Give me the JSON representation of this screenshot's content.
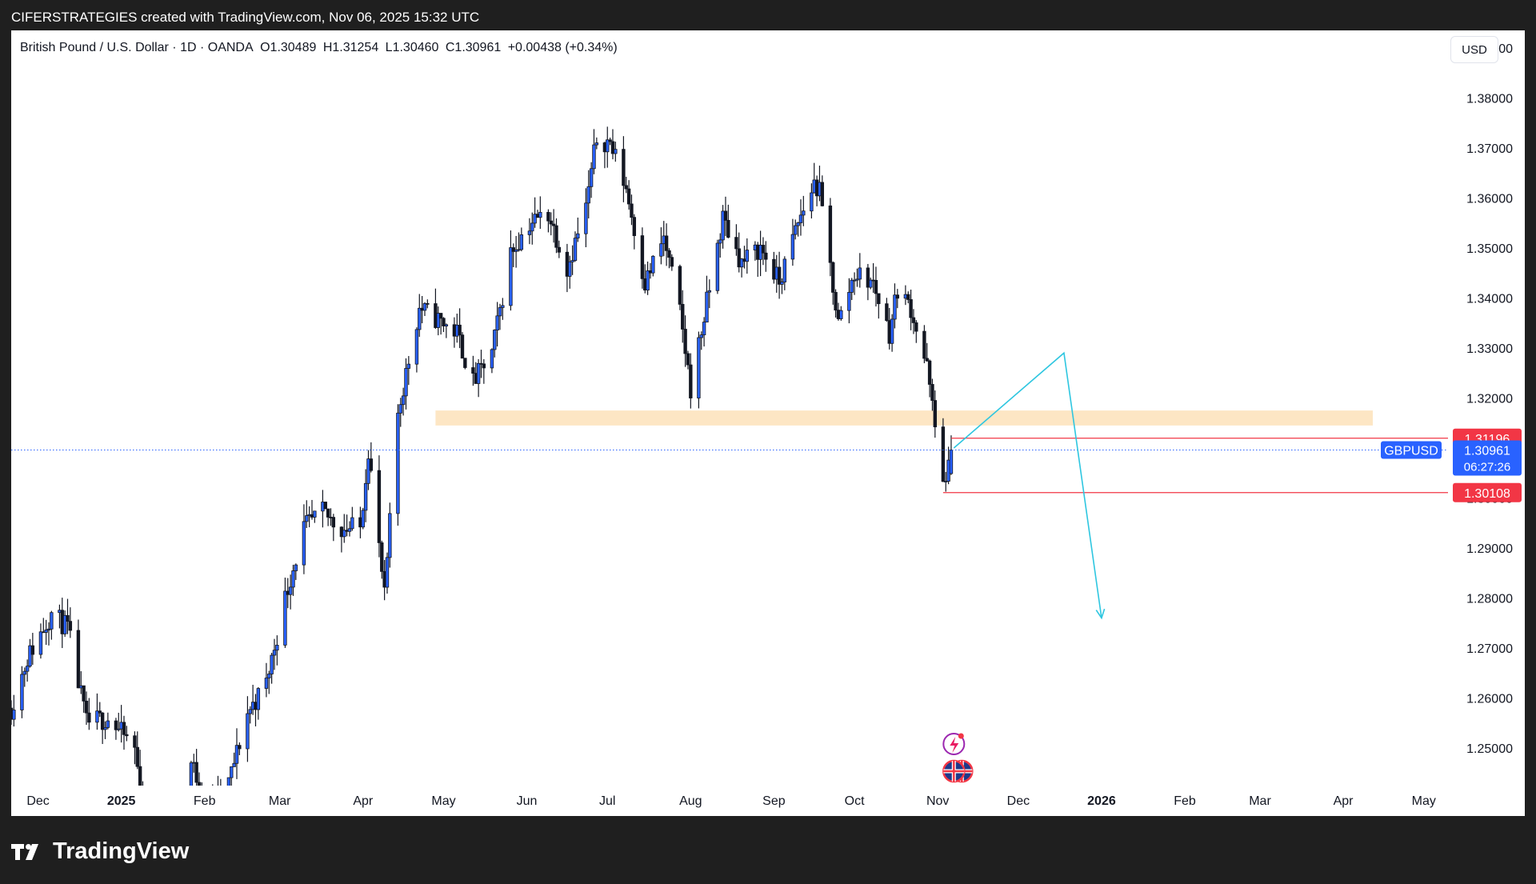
{
  "caption": "CIFERSTRATEGIES created with TradingView.com, Nov 06, 2025 15:32 UTC",
  "legend": {
    "title": "British Pound / U.S. Dollar · 1D · OANDA",
    "open": "O1.30489",
    "high": "H1.31254",
    "low": "L1.30460",
    "close": "C1.30961",
    "change": "+0.00438 (+0.34%)"
  },
  "currency_button": "USD",
  "footer_brand": "TradingView",
  "colors": {
    "candle_up": "#131722",
    "candle_down": "#131722",
    "candle_up_fill": "#2962ff",
    "zone": "#fde6c4",
    "level_line": "#f23645",
    "current_price": "#2962ff",
    "projection": "#2ec6e0"
  },
  "icons": [
    "flash-event-icon",
    "uk-flag-icon"
  ],
  "chart_data": {
    "type": "candlestick",
    "symbol": "GBPUSD",
    "interval": "1D",
    "x_axis_labels": [
      "Dec",
      "2025",
      "Feb",
      "Mar",
      "Apr",
      "May",
      "Jun",
      "Jul",
      "Aug",
      "Sep",
      "Oct",
      "Nov",
      "Dec",
      "2026",
      "Feb",
      "Mar",
      "Apr",
      "May"
    ],
    "x_range": [
      "2024-11-21",
      "2026-05-10"
    ],
    "y_ticks": [
      "1.39000",
      "1.38000",
      "1.37000",
      "1.36000",
      "1.35000",
      "1.34000",
      "1.33000",
      "1.32000",
      "1.31000",
      "1.30000",
      "1.29000",
      "1.28000",
      "1.27000",
      "1.26000",
      "1.25000"
    ],
    "ylim": [
      1.2425,
      1.3935
    ],
    "price_path": [
      [
        "2024-11-21",
        1.258
      ],
      [
        "2024-11-27",
        1.268
      ],
      [
        "2024-12-06",
        1.277
      ],
      [
        "2024-12-12",
        1.274
      ],
      [
        "2024-12-19",
        1.255
      ],
      [
        "2024-12-27",
        1.256
      ],
      [
        "2025-01-06",
        1.25
      ],
      [
        "2025-01-13",
        1.222
      ],
      [
        "2025-01-20",
        1.233
      ],
      [
        "2025-01-27",
        1.247
      ],
      [
        "2025-02-03",
        1.238
      ],
      [
        "2025-02-10",
        1.243
      ],
      [
        "2025-02-17",
        1.257
      ],
      [
        "2025-02-24",
        1.263
      ],
      [
        "2025-03-03",
        1.28
      ],
      [
        "2025-03-10",
        1.294
      ],
      [
        "2025-03-17",
        1.297
      ],
      [
        "2025-03-24",
        1.294
      ],
      [
        "2025-03-31",
        1.294
      ],
      [
        "2025-04-03",
        1.31
      ],
      [
        "2025-04-09",
        1.28
      ],
      [
        "2025-04-14",
        1.317
      ],
      [
        "2025-04-22",
        1.338
      ],
      [
        "2025-04-28",
        1.336
      ],
      [
        "2025-05-06",
        1.333
      ],
      [
        "2025-05-12",
        1.323
      ],
      [
        "2025-05-19",
        1.329
      ],
      [
        "2025-05-26",
        1.349
      ],
      [
        "2025-06-02",
        1.355
      ],
      [
        "2025-06-09",
        1.357
      ],
      [
        "2025-06-16",
        1.346
      ],
      [
        "2025-06-23",
        1.358
      ],
      [
        "2025-06-27",
        1.372
      ],
      [
        "2025-07-02",
        1.371
      ],
      [
        "2025-07-08",
        1.362
      ],
      [
        "2025-07-15",
        1.343
      ],
      [
        "2025-07-22",
        1.352
      ],
      [
        "2025-07-28",
        1.337
      ],
      [
        "2025-08-01",
        1.322
      ],
      [
        "2025-08-07",
        1.339
      ],
      [
        "2025-08-13",
        1.356
      ],
      [
        "2025-08-20",
        1.347
      ],
      [
        "2025-08-27",
        1.35
      ],
      [
        "2025-09-03",
        1.343
      ],
      [
        "2025-09-10",
        1.355
      ],
      [
        "2025-09-16",
        1.363
      ],
      [
        "2025-09-18",
        1.361
      ],
      [
        "2025-09-25",
        1.335
      ],
      [
        "2025-10-01",
        1.345
      ],
      [
        "2025-10-08",
        1.343
      ],
      [
        "2025-10-14",
        1.333
      ],
      [
        "2025-10-17",
        1.342
      ],
      [
        "2025-10-22",
        1.338
      ],
      [
        "2025-10-28",
        1.326
      ],
      [
        "2025-10-31",
        1.314
      ],
      [
        "2025-11-04",
        1.302
      ],
      [
        "2025-11-06",
        1.30961
      ]
    ],
    "last_candle": {
      "date": "2025-11-06",
      "open": 1.30489,
      "high": 1.31254,
      "low": 1.3046,
      "close": 1.30961
    },
    "annotations": {
      "zone": {
        "x_start": "2025-04-28",
        "x_end": "2026-04-12",
        "y_low": 1.3145,
        "y_high": 1.3175
      },
      "upper_level": {
        "value": "1.31196",
        "x_start": "2025-11-06"
      },
      "lower_level": {
        "value": "1.30108",
        "x_start": "2025-11-03"
      },
      "current_price": {
        "symbol_tag": "GBPUSD",
        "value": "1.30961",
        "countdown": "06:27:26"
      },
      "projection": [
        [
          "2025-11-07",
          1.31
        ],
        [
          "2025-12-18",
          1.329
        ],
        [
          "2026-01-01",
          1.276
        ]
      ]
    },
    "grid": false
  }
}
